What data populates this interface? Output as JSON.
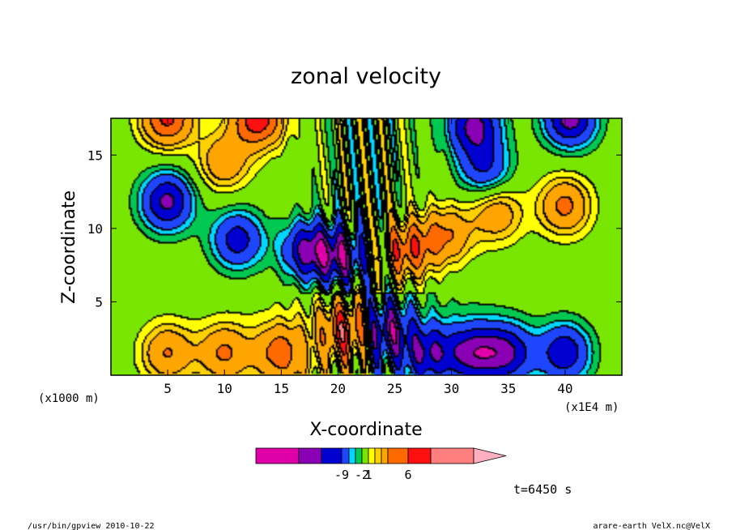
{
  "chart_data": {
    "type": "heatmap",
    "title": "zonal velocity",
    "xlabel": "X-coordinate",
    "ylabel": "Z-coordinate",
    "x_unit_left": "(x1000 m)",
    "x_unit_right": "(x1E4 m)",
    "xlim": [
      0,
      45
    ],
    "ylim": [
      0,
      17.5
    ],
    "x_ticks": [
      5,
      10,
      15,
      20,
      25,
      30,
      35,
      40
    ],
    "y_ticks": [
      5,
      10,
      15
    ],
    "colorbar": {
      "colors": [
        "#e000a8",
        "#8a00b4",
        "#0000d0",
        "#1e46ff",
        "#00d6ff",
        "#00c850",
        "#78e600",
        "#ffff00",
        "#ffd000",
        "#ffa500",
        "#ff6a00",
        "#ff1010",
        "#ff7f7f",
        "#ffb0c0"
      ],
      "tick_labels": [
        {
          "label": "-9",
          "index": 2
        },
        {
          "label": "-2",
          "index": 5
        },
        {
          "label": "1",
          "index": 6
        },
        {
          "label": "6",
          "index": 10
        }
      ]
    },
    "time_label": "t=6450 s",
    "footer_left": "/usr/bin/gpview  2010-10-22",
    "footer_right": "arare-earth_VelX.nc@VelX",
    "field_features": [
      {
        "sign": -1,
        "x": 5,
        "z": 11.8,
        "amp": 7.5
      },
      {
        "sign": -1,
        "x": 11.2,
        "z": 9.2,
        "amp": 6.0
      },
      {
        "sign": -1,
        "x": 17.5,
        "z": 8.5,
        "amp": 7.5
      },
      {
        "sign": -1,
        "x": 20.5,
        "z": 8.0,
        "amp": 7.0
      },
      {
        "sign": 1,
        "x": 26,
        "z": 8.5,
        "amp": 6.5
      },
      {
        "sign": 1,
        "x": 29.5,
        "z": 9.5,
        "amp": 5.0
      },
      {
        "sign": 1,
        "x": 34,
        "z": 11,
        "amp": 4.5
      },
      {
        "sign": 1,
        "x": 40,
        "z": 11.5,
        "amp": 5.5
      },
      {
        "sign": 1,
        "x": 5,
        "z": 17.5,
        "amp": 7.5
      },
      {
        "sign": 1,
        "x": 13,
        "z": 17.5,
        "amp": 8.5
      },
      {
        "sign": -1,
        "x": 40.5,
        "z": 17.5,
        "amp": 8.0
      },
      {
        "sign": -1,
        "x": 32,
        "z": 17,
        "amp": 7.5
      },
      {
        "sign": 1,
        "x": 10,
        "z": 14.5,
        "amp": 4.5
      },
      {
        "sign": -1,
        "x": 33,
        "z": 14,
        "amp": 5.0
      },
      {
        "sign": 1,
        "x": 5,
        "z": 1.5,
        "amp": 5.0
      },
      {
        "sign": 1,
        "x": 10,
        "z": 1.5,
        "amp": 5.0
      },
      {
        "sign": 1,
        "x": 15,
        "z": 1.5,
        "amp": 5.5
      },
      {
        "sign": 1,
        "x": 21,
        "z": 3.0,
        "amp": 7.5
      },
      {
        "sign": -1,
        "x": 24,
        "z": 3.0,
        "amp": 7.5
      },
      {
        "sign": -1,
        "x": 28,
        "z": 1.5,
        "amp": 6.0
      },
      {
        "sign": -1,
        "x": 32,
        "z": 1.5,
        "amp": 7.0
      },
      {
        "sign": -1,
        "x": 35,
        "z": 1.5,
        "amp": 6.5
      },
      {
        "sign": -1,
        "x": 40,
        "z": 1.5,
        "amp": 6.5
      }
    ]
  }
}
